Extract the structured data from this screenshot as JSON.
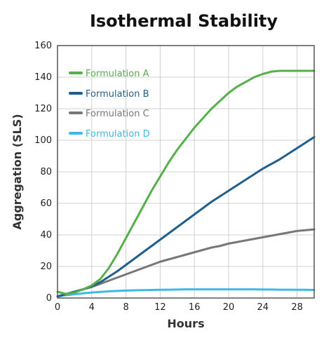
{
  "chart_data": {
    "type": "line",
    "title": "Isothermal Stability",
    "xlabel": "Hours",
    "ylabel": "Aggregation (SLS)",
    "xlim": [
      0,
      30
    ],
    "ylim": [
      0,
      160
    ],
    "xticks": [
      0,
      4,
      8,
      12,
      16,
      20,
      24,
      28
    ],
    "yticks": [
      0,
      20,
      40,
      60,
      80,
      100,
      120,
      140,
      160
    ],
    "grid": true,
    "legend_position": "top-left",
    "x": [
      0,
      1,
      2,
      3,
      4,
      5,
      6,
      7,
      8,
      9,
      10,
      11,
      12,
      13,
      14,
      15,
      16,
      17,
      18,
      19,
      20,
      21,
      22,
      23,
      24,
      25,
      26,
      27,
      28,
      29,
      30
    ],
    "series": [
      {
        "name": "Formulation A",
        "color": "#55b04a",
        "values": [
          4,
          2.5,
          3.5,
          5.5,
          8,
          12,
          19,
          28,
          38,
          48,
          58,
          68,
          77,
          86,
          94,
          101,
          108,
          114,
          120,
          125,
          130,
          134,
          137,
          140,
          142,
          143.5,
          144,
          144,
          144,
          144,
          144
        ]
      },
      {
        "name": "Formulation B",
        "color": "#1f5f8b",
        "values": [
          1,
          2.5,
          4,
          5.5,
          7.5,
          10,
          13.5,
          17,
          21,
          25,
          29,
          33,
          37,
          41,
          45,
          49,
          53,
          57,
          61,
          64.5,
          68,
          71.5,
          75,
          78.5,
          82,
          85,
          88,
          91.5,
          95,
          98.5,
          102
        ]
      },
      {
        "name": "Formulation C",
        "color": "#777777",
        "values": [
          1,
          2.5,
          4,
          5.5,
          7,
          9,
          11,
          13,
          15,
          17,
          19,
          21,
          23,
          24.5,
          26,
          27.5,
          29,
          30.5,
          32,
          33,
          34.5,
          35.5,
          36.5,
          37.5,
          38.5,
          39.5,
          40.5,
          41.5,
          42.5,
          43,
          43.5
        ]
      },
      {
        "name": "Formulation D",
        "color": "#3fb8e8",
        "values": [
          1,
          1.8,
          2.4,
          3,
          3.5,
          3.9,
          4.2,
          4.5,
          4.7,
          4.9,
          5,
          5.1,
          5.2,
          5.3,
          5.4,
          5.5,
          5.5,
          5.5,
          5.5,
          5.5,
          5.5,
          5.5,
          5.5,
          5.5,
          5.4,
          5.4,
          5.3,
          5.3,
          5.2,
          5.2,
          5.1
        ]
      }
    ]
  }
}
